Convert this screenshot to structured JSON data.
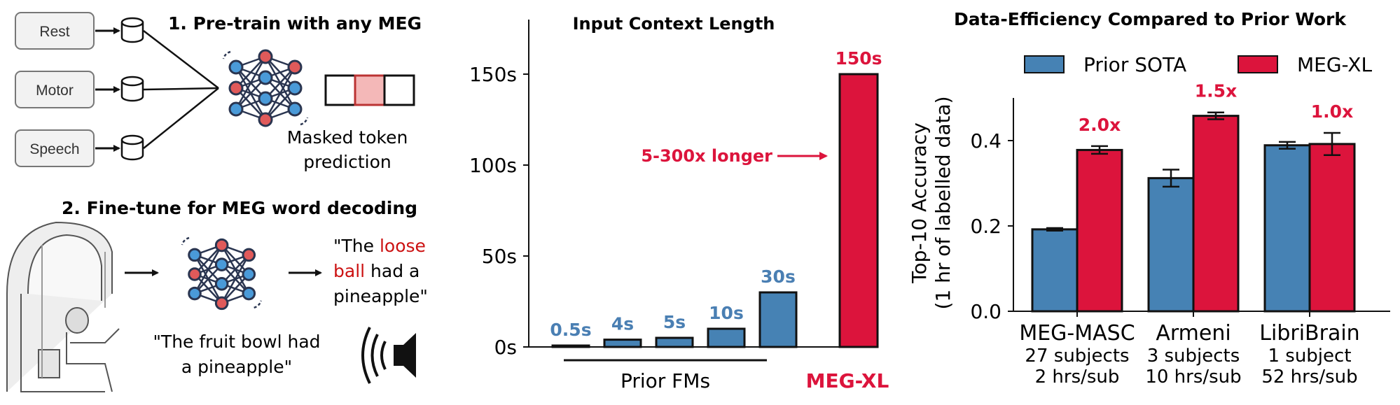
{
  "colors": {
    "blue": "#4682b4",
    "red": "#dc143c",
    "label_blue": "#4a7fb3",
    "label_red": "#dc143c",
    "pink": "#f4b8b8"
  },
  "left_panel": {
    "step1_title": "1. Pre-train with any MEG",
    "inputs": [
      "Rest",
      "Motor",
      "Speech"
    ],
    "masked_caption_line1": "Masked token",
    "masked_caption_line2": "prediction",
    "step2_title": "2. Fine-tune for MEG word decoding",
    "stimulus_line1": "\"The fruit bowl had",
    "stimulus_line2": "a pineapple\"",
    "output_q1": "\"The ",
    "output_w1": "loose",
    "output_w2": "ball",
    "output_t2": " had a",
    "output_line3": "pineapple\"",
    "icons": [
      "database-icon",
      "neural-network-icon",
      "meg-scanner-icon",
      "speaker-icon",
      "arrow-icon"
    ]
  },
  "chart_data": [
    {
      "type": "bar",
      "title": "Input Context Length",
      "categories": [
        "Prior FM 1",
        "Prior FM 2",
        "Prior FM 3",
        "Prior FM 4",
        "Prior FM 5",
        "MEG-XL"
      ],
      "values": [
        0.5,
        4,
        5,
        10,
        30,
        150
      ],
      "bar_labels": [
        "0.5s",
        "4s",
        "5s",
        "10s",
        "30s",
        "150s"
      ],
      "bar_colors": [
        "blue",
        "blue",
        "blue",
        "blue",
        "blue",
        "red"
      ],
      "yticks": [
        "0s",
        "50s",
        "100s",
        "150s"
      ],
      "ytick_values": [
        0,
        50,
        100,
        150
      ],
      "ylim": [
        0,
        180
      ],
      "group_labels": [
        "Prior FMs",
        "MEG-XL"
      ],
      "annotation": "5-300x longer"
    },
    {
      "type": "bar",
      "title": "Data-Efficiency Compared to Prior Work",
      "ylabel_line1": "Top-10 Accuracy",
      "ylabel_line2": "(1 hr of labelled data)",
      "ylim": [
        0,
        0.5
      ],
      "yticks": [
        "0.0",
        "0.2",
        "0.4"
      ],
      "ytick_values": [
        0,
        0.2,
        0.4
      ],
      "legend": "top",
      "categories": [
        {
          "name": "MEG-MASC",
          "line2": "27 subjects",
          "line3": "2 hrs/sub"
        },
        {
          "name": "Armeni",
          "line2": "3 subjects",
          "line3": "10 hrs/sub"
        },
        {
          "name": "LibriBrain",
          "line2": "1 subject",
          "line3": "52 hrs/sub"
        }
      ],
      "series": [
        {
          "name": "Prior SOTA",
          "color": "blue",
          "values": [
            0.192,
            0.312,
            0.389
          ],
          "errors": [
            0.003,
            0.02,
            0.008
          ]
        },
        {
          "name": "MEG-XL",
          "color": "red",
          "values": [
            0.378,
            0.458,
            0.392
          ],
          "errors": [
            0.009,
            0.008,
            0.026
          ]
        }
      ],
      "ratio_labels": [
        "2.0x",
        "1.5x",
        "1.0x"
      ]
    }
  ]
}
